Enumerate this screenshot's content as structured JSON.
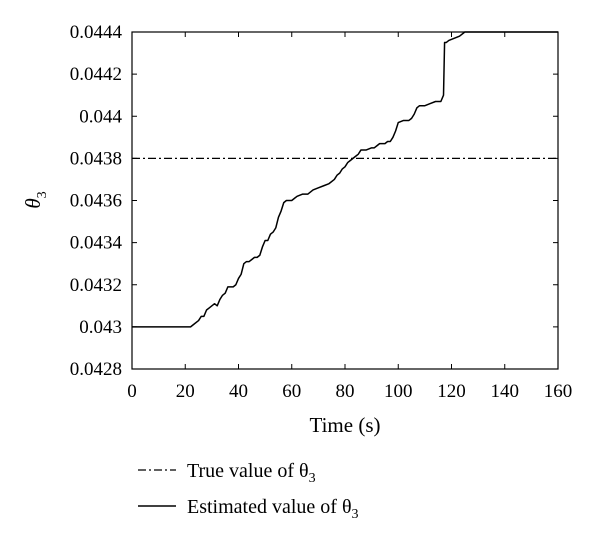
{
  "chart_data": {
    "type": "line",
    "xlabel": "Time (s)",
    "ylabel": "θ",
    "ylabel_subscript": "3",
    "xlim": [
      0,
      160
    ],
    "ylim": [
      0.0428,
      0.0444
    ],
    "x_ticks": [
      "0",
      "20",
      "40",
      "60",
      "80",
      "100",
      "120",
      "140",
      "160"
    ],
    "y_ticks": [
      "0.0428",
      "0.043",
      "0.0432",
      "0.0434",
      "0.0436",
      "0.0438",
      "0.044",
      "0.0442",
      "0.0444"
    ],
    "grid": false,
    "legend_position": "bottom",
    "series": [
      {
        "name": "True value of θ3",
        "name_text": "True value of θ",
        "name_subscript": "3",
        "style": "dashdot",
        "color": "#000000",
        "x": [
          0,
          160
        ],
        "y": [
          0.0438,
          0.0438
        ]
      },
      {
        "name": "Estimated value of θ3",
        "name_text": "Estimated value of θ",
        "name_subscript": "3",
        "style": "solid",
        "color": "#000000",
        "x": [
          0,
          22,
          23,
          25,
          26,
          27,
          28,
          29,
          30,
          31,
          32,
          33,
          34,
          35,
          36,
          37,
          38,
          39,
          40,
          41,
          42,
          43,
          44,
          45,
          46,
          47,
          48,
          49,
          50,
          51,
          52,
          53,
          54,
          55,
          56,
          57,
          58,
          59,
          60,
          61,
          62,
          64,
          66,
          68,
          70,
          72,
          74,
          76,
          77,
          78,
          79,
          80,
          81,
          82,
          83,
          84,
          85,
          86,
          88,
          90,
          91,
          92,
          93,
          94,
          95,
          96,
          97,
          98,
          99,
          100,
          102,
          104,
          105,
          106,
          107,
          108,
          110,
          112,
          114,
          116,
          117,
          117.4,
          118,
          119,
          121,
          123,
          125,
          126,
          128,
          160
        ],
        "y": [
          0.043,
          0.043,
          0.04301,
          0.04303,
          0.04305,
          0.04305,
          0.04308,
          0.04309,
          0.0431,
          0.04311,
          0.0431,
          0.04313,
          0.04315,
          0.04316,
          0.04319,
          0.04319,
          0.04319,
          0.0432,
          0.04323,
          0.04325,
          0.0433,
          0.04331,
          0.04331,
          0.04332,
          0.04333,
          0.04333,
          0.04334,
          0.04338,
          0.04341,
          0.04341,
          0.04344,
          0.04345,
          0.04347,
          0.04352,
          0.04355,
          0.04359,
          0.0436,
          0.0436,
          0.0436,
          0.04361,
          0.04362,
          0.04363,
          0.04363,
          0.04365,
          0.04366,
          0.04367,
          0.04368,
          0.0437,
          0.04372,
          0.04373,
          0.04375,
          0.04376,
          0.04378,
          0.04379,
          0.0438,
          0.04381,
          0.04382,
          0.04384,
          0.04384,
          0.04385,
          0.04385,
          0.04386,
          0.04387,
          0.04387,
          0.04387,
          0.04388,
          0.04388,
          0.0439,
          0.04393,
          0.04397,
          0.04398,
          0.04398,
          0.04399,
          0.04401,
          0.04404,
          0.04405,
          0.04405,
          0.04406,
          0.04407,
          0.04407,
          0.0441,
          0.04435,
          0.04435,
          0.04436,
          0.04437,
          0.04438,
          0.0444,
          0.0444,
          0.0444,
          0.0444
        ]
      }
    ]
  }
}
